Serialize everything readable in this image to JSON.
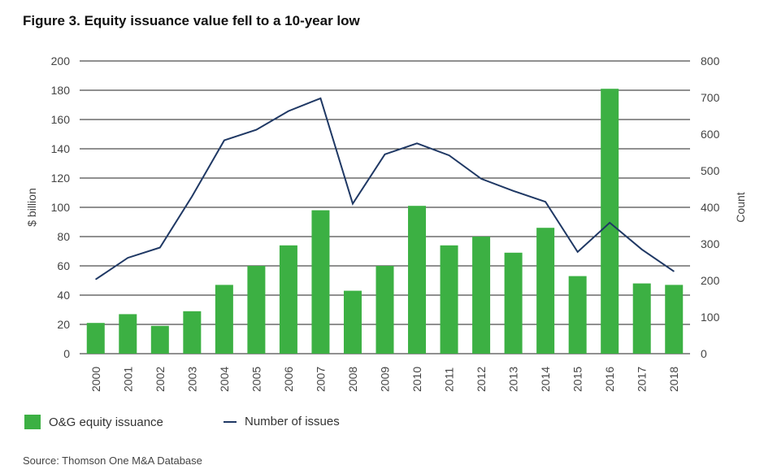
{
  "title": "Figure 3. Equity issuance value fell to a 10-year low",
  "source": "Source: Thomson One M&A Database",
  "colors": {
    "bar": "#3cb043",
    "line": "#1f3864",
    "grid": "#222222"
  },
  "chart_data": {
    "type": "bar",
    "categories": [
      "2000",
      "2001",
      "2002",
      "2003",
      "2004",
      "2005",
      "2006",
      "2007",
      "2008",
      "2009",
      "2010",
      "2011",
      "2012",
      "2013",
      "2014",
      "2015",
      "2016",
      "2017",
      "2018"
    ],
    "series": [
      {
        "name": "O&G equity issuance",
        "type": "bar",
        "axis": "left",
        "values": [
          21,
          27,
          19,
          29,
          47,
          60,
          74,
          98,
          43,
          60,
          101,
          74,
          80,
          69,
          86,
          53,
          181,
          48,
          47
        ]
      },
      {
        "name": "Number of issues",
        "type": "line",
        "axis": "right",
        "values": [
          203,
          262,
          290,
          430,
          583,
          612,
          663,
          698,
          410,
          545,
          575,
          542,
          478,
          445,
          415,
          278,
          358,
          285,
          225
        ]
      }
    ],
    "ylabel": "$ billion",
    "y2label": "Count",
    "ylim": [
      0,
      200
    ],
    "y2lim": [
      0,
      800
    ],
    "yticks": [
      "0",
      "20",
      "40",
      "60",
      "80",
      "100",
      "120",
      "140",
      "160",
      "180",
      "200"
    ],
    "y2ticks": [
      "0",
      "100",
      "200",
      "300",
      "400",
      "500",
      "600",
      "700",
      "800"
    ],
    "grid": true,
    "legend": "bottom-left"
  }
}
